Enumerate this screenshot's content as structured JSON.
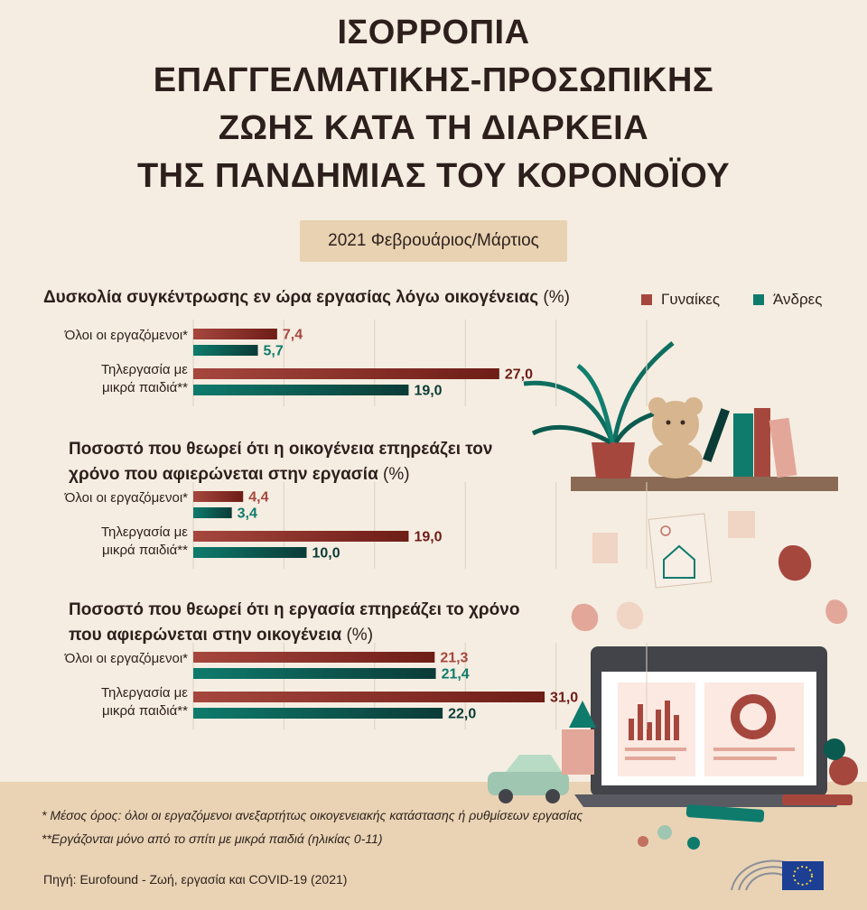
{
  "title_lines": [
    "ΙΣΟΡΡΟΠΙΑ",
    "ΕΠΑΓΓΕΛΜΑΤΙΚΗΣ-ΠΡΟΣΩΠΙΚΗΣ",
    "ΖΩΗΣ ΚΑΤΑ ΤΗ ΔΙΑΡΚΕΙΑ",
    "ΤΗΣ ΠΑΝΔΗΜΙΑΣ ΤΟΥ ΚΟΡΟΝΟΪΟΥ"
  ],
  "date_label": "2021 Φεβρουάριος/Μάρτιος",
  "legend": [
    {
      "label": "Γυναίκες",
      "color": "#a6473e"
    },
    {
      "label": "Άνδρες",
      "color": "#0e7b6c"
    }
  ],
  "colors": {
    "women_dark": "#6e1d17",
    "men_dark": "#0b3b37"
  },
  "chart_data": [
    {
      "type": "bar",
      "title": "Δυσκολία συγκέντρωσης εν ώρα εργασίας λόγω οικογένειας",
      "unit": "(%)",
      "categories": [
        "Όλοι οι εργαζόμενοι*",
        "Τηλεργασία με μικρά παιδιά**"
      ],
      "category_lines": [
        [
          "Όλοι οι εργαζόμενοι*"
        ],
        [
          "Τηλεργασία με",
          "μικρά παιδιά**"
        ]
      ],
      "series": [
        {
          "name": "Γυναίκες",
          "values": [
            7.4,
            27.0
          ],
          "labels": [
            "7,4",
            "27,0"
          ]
        },
        {
          "name": "Άνδρες",
          "values": [
            5.7,
            19.0
          ],
          "labels": [
            "5,7",
            "19,0"
          ]
        }
      ],
      "xlim": [
        0,
        40
      ],
      "grid": true
    },
    {
      "type": "bar",
      "title_lines": [
        "Ποσοστό που θεωρεί ότι η οικογένεια επηρεάζει τον",
        "χρόνο που αφιερώνεται στην εργασία"
      ],
      "unit": "(%)",
      "categories": [
        "Όλοι οι εργαζόμενοι*",
        "Τηλεργασία με μικρά παιδιά**"
      ],
      "category_lines": [
        [
          "Όλοι οι εργαζόμενοι*"
        ],
        [
          "Τηλεργασία με",
          "μικρά παιδιά**"
        ]
      ],
      "series": [
        {
          "name": "Γυναίκες",
          "values": [
            4.4,
            19.0
          ],
          "labels": [
            "4,4",
            "19,0"
          ]
        },
        {
          "name": "Άνδρες",
          "values": [
            3.4,
            10.0
          ],
          "labels": [
            "3,4",
            "10,0"
          ]
        }
      ],
      "xlim": [
        0,
        40
      ],
      "grid": true
    },
    {
      "type": "bar",
      "title_lines": [
        "Ποσοστό που θεωρεί ότι η εργασία επηρεάζει το χρόνο",
        "που αφιερώνεται στην οικογένεια"
      ],
      "unit": "(%)",
      "categories": [
        "Όλοι οι εργαζόμενοι*",
        "Τηλεργασία με μικρά παιδιά**"
      ],
      "category_lines": [
        [
          "Όλοι οι εργαζόμενοι*"
        ],
        [
          "Τηλεργασία με",
          "μικρά παιδιά**"
        ]
      ],
      "series": [
        {
          "name": "Γυναίκες",
          "values": [
            21.3,
            31.0
          ],
          "labels": [
            "21,3",
            "31,0"
          ]
        },
        {
          "name": "Άνδρες",
          "values": [
            21.4,
            22.0
          ],
          "labels": [
            "21,4",
            "22,0"
          ]
        }
      ],
      "xlim": [
        0,
        40
      ],
      "grid": true
    }
  ],
  "footnotes": [
    "* Μέσος όρος: όλοι οι εργαζόμενοι ανεξαρτήτως οικογενειακής κατάστασης ή ρυθμίσεων εργασίας",
    "**Εργάζονται μόνο από το σπίτι με μικρά παιδιά (ηλικίας 0-11)"
  ],
  "source": "Πηγή: Eurofound - Ζωή, εργασία και COVID-19 (2021)"
}
